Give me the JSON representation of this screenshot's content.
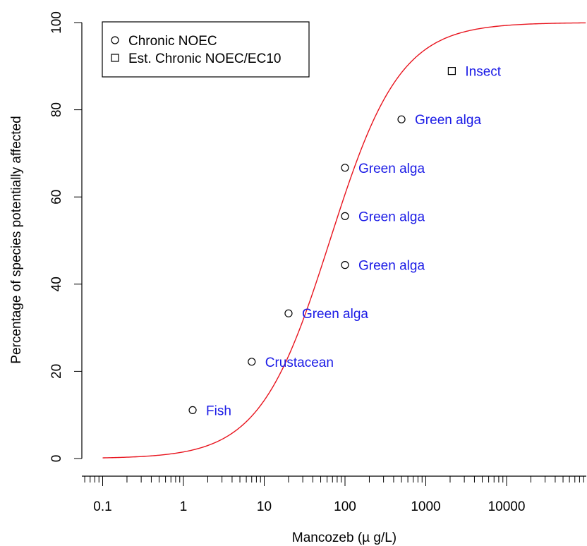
{
  "chart_data": {
    "type": "scatter",
    "title": "",
    "xlabel": "Mancozeb (µg/L)",
    "xlabel_prefix": "Mancozeb ",
    "xlabel_unit": "(µ g/L)",
    "ylabel": "Percentage of species potentially affected",
    "xscale": "log",
    "xlim": [
      0.1,
      100000
    ],
    "ylim": [
      0,
      100
    ],
    "x_ticks": [
      {
        "value": 0.1,
        "label": "0.1"
      },
      {
        "value": 1,
        "label": "1"
      },
      {
        "value": 10,
        "label": "10"
      },
      {
        "value": 100,
        "label": "100"
      },
      {
        "value": 1000,
        "label": "1000"
      },
      {
        "value": 10000,
        "label": "10000"
      }
    ],
    "y_ticks": [
      {
        "value": 0,
        "label": "0"
      },
      {
        "value": 20,
        "label": "20"
      },
      {
        "value": 40,
        "label": "40"
      },
      {
        "value": 60,
        "label": "60"
      },
      {
        "value": 80,
        "label": "80"
      },
      {
        "value": 100,
        "label": "100"
      }
    ],
    "grid": false,
    "legend_position": "top-left",
    "legend": [
      {
        "label": "Chronic NOEC",
        "marker": "circle"
      },
      {
        "label": "Est. Chronic NOEC/EC10",
        "marker": "square"
      }
    ],
    "points": [
      {
        "x": 1.3,
        "y": 11.1,
        "label": "Fish",
        "marker": "circle"
      },
      {
        "x": 7,
        "y": 22.2,
        "label": "Crustacean",
        "marker": "circle"
      },
      {
        "x": 20,
        "y": 33.3,
        "label": "Green alga",
        "marker": "circle"
      },
      {
        "x": 100,
        "y": 44.4,
        "label": "Green alga",
        "marker": "circle"
      },
      {
        "x": 100,
        "y": 55.6,
        "label": "Green alga",
        "marker": "circle"
      },
      {
        "x": 100,
        "y": 66.7,
        "label": "Green alga",
        "marker": "circle"
      },
      {
        "x": 500,
        "y": 77.8,
        "label": "Green alga",
        "marker": "circle"
      },
      {
        "x": 2100,
        "y": 88.9,
        "label": "Insect",
        "marker": "square"
      }
    ],
    "curve": {
      "model": "log-logistic",
      "x50": 65,
      "slope": 1.0
    },
    "colors": {
      "curve": "#e8141e",
      "point_label": "#1a1ae6",
      "marker": "#000000"
    }
  }
}
